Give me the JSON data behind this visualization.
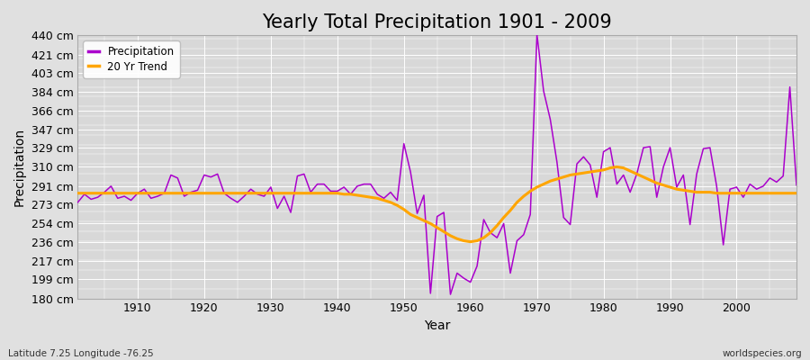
{
  "title": "Yearly Total Precipitation 1901 - 2009",
  "xlabel": "Year",
  "ylabel": "Precipitation",
  "subtitle": "Latitude 7.25 Longitude -76.25",
  "watermark": "worldspecies.org",
  "years": [
    1901,
    1902,
    1903,
    1904,
    1905,
    1906,
    1907,
    1908,
    1909,
    1910,
    1911,
    1912,
    1913,
    1914,
    1915,
    1916,
    1917,
    1918,
    1919,
    1920,
    1921,
    1922,
    1923,
    1924,
    1925,
    1926,
    1927,
    1928,
    1929,
    1930,
    1931,
    1932,
    1933,
    1934,
    1935,
    1936,
    1937,
    1938,
    1939,
    1940,
    1941,
    1942,
    1943,
    1944,
    1945,
    1946,
    1947,
    1948,
    1949,
    1950,
    1951,
    1952,
    1953,
    1954,
    1955,
    1956,
    1957,
    1958,
    1959,
    1960,
    1961,
    1962,
    1963,
    1964,
    1965,
    1966,
    1967,
    1968,
    1969,
    1970,
    1971,
    1972,
    1973,
    1974,
    1975,
    1976,
    1977,
    1978,
    1979,
    1980,
    1981,
    1982,
    1983,
    1984,
    1985,
    1986,
    1987,
    1988,
    1989,
    1990,
    1991,
    1992,
    1993,
    1994,
    1995,
    1996,
    1997,
    1998,
    1999,
    2000,
    2001,
    2002,
    2003,
    2004,
    2005,
    2006,
    2007,
    2008,
    2009
  ],
  "precipitation": [
    275,
    283,
    278,
    280,
    285,
    291,
    279,
    281,
    277,
    284,
    288,
    279,
    281,
    284,
    302,
    299,
    281,
    285,
    287,
    302,
    300,
    303,
    284,
    279,
    275,
    281,
    288,
    283,
    281,
    290,
    269,
    281,
    265,
    301,
    303,
    285,
    293,
    293,
    286,
    286,
    290,
    283,
    291,
    293,
    293,
    283,
    279,
    285,
    277,
    333,
    305,
    264,
    282,
    185,
    261,
    265,
    184,
    205,
    200,
    196,
    212,
    258,
    245,
    240,
    254,
    205,
    237,
    243,
    263,
    441,
    385,
    357,
    315,
    260,
    253,
    313,
    320,
    312,
    280,
    325,
    329,
    293,
    302,
    285,
    303,
    329,
    330,
    280,
    310,
    329,
    290,
    302,
    253,
    303,
    328,
    329,
    291,
    233,
    288,
    290,
    280,
    293,
    288,
    291,
    299,
    295,
    301,
    389,
    292
  ],
  "trend": [
    284,
    284,
    284,
    284,
    284,
    284,
    284,
    284,
    284,
    284,
    284,
    284,
    284,
    284,
    284,
    284,
    284,
    284,
    284,
    284,
    284,
    284,
    284,
    284,
    284,
    284,
    284,
    284,
    284,
    284,
    284,
    284,
    284,
    284,
    284,
    284,
    284,
    284,
    284,
    284,
    283,
    283,
    282,
    281,
    280,
    279,
    277,
    275,
    272,
    268,
    263,
    260,
    257,
    254,
    250,
    246,
    242,
    239,
    237,
    236,
    237,
    240,
    245,
    252,
    260,
    267,
    275,
    281,
    286,
    290,
    293,
    296,
    298,
    300,
    302,
    303,
    304,
    305,
    306,
    307,
    309,
    310,
    309,
    306,
    303,
    300,
    297,
    294,
    292,
    290,
    288,
    287,
    286,
    285,
    285,
    285,
    284,
    284,
    284,
    284,
    284,
    284,
    284,
    284,
    284,
    284,
    284,
    284,
    284
  ],
  "ylim": [
    180,
    440
  ],
  "yticks": [
    180,
    199,
    217,
    236,
    254,
    273,
    291,
    310,
    329,
    347,
    366,
    384,
    403,
    421,
    440
  ],
  "ytick_labels": [
    "180 cm",
    "199 cm",
    "217 cm",
    "236 cm",
    "254 cm",
    "273 cm",
    "291 cm",
    "310 cm",
    "329 cm",
    "347 cm",
    "366 cm",
    "384 cm",
    "403 cm",
    "421 cm",
    "440 cm"
  ],
  "xticks": [
    1910,
    1920,
    1930,
    1940,
    1950,
    1960,
    1970,
    1980,
    1990,
    2000
  ],
  "xlim": [
    1901,
    2009
  ],
  "precipitation_color": "#aa00cc",
  "trend_color": "#FFA500",
  "bg_color": "#E0E0E0",
  "plot_bg_color": "#D8D8D8",
  "grid_color": "#FFFFFF",
  "title_fontsize": 15,
  "axis_label_fontsize": 10,
  "tick_fontsize": 9
}
